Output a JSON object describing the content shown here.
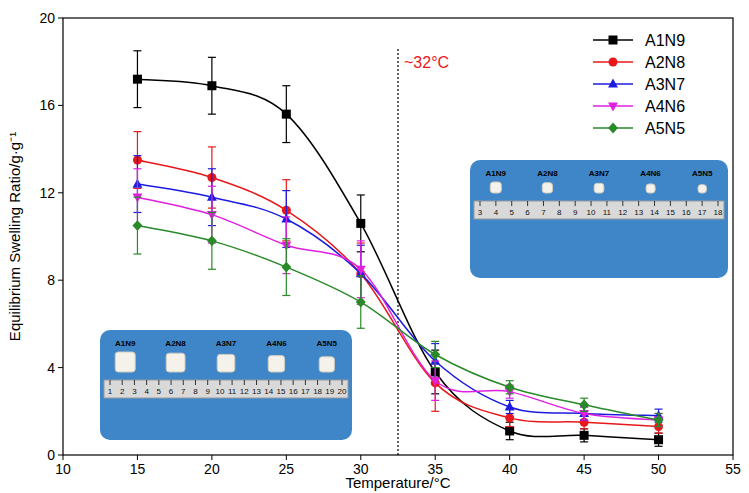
{
  "chart_data": {
    "type": "line",
    "x_label": "Temperature/°C",
    "y_label": "Equilibrium Swelling Ratio/g·g⁻¹",
    "x": [
      15,
      20,
      25,
      30,
      35,
      40,
      45,
      50
    ],
    "xlim": [
      10,
      55
    ],
    "xticks": [
      10,
      15,
      20,
      25,
      30,
      35,
      40,
      45,
      50,
      55
    ],
    "ylim": [
      0,
      20
    ],
    "yticks": [
      0,
      4,
      8,
      12,
      16,
      20
    ],
    "legend": "top-right",
    "grid": false,
    "series": [
      {
        "name": "A1N9",
        "color": "#000000",
        "marker": "square",
        "line_style": "solid",
        "values": [
          17.2,
          16.9,
          15.6,
          10.6,
          3.8,
          1.1,
          0.9,
          0.7
        ],
        "errors": [
          1.3,
          1.3,
          1.3,
          1.3,
          1.0,
          0.4,
          0.3,
          0.3
        ]
      },
      {
        "name": "A2N8",
        "color": "#e8181a",
        "marker": "circle",
        "line_style": "solid",
        "values": [
          13.5,
          12.7,
          11.2,
          8.3,
          3.3,
          1.7,
          1.5,
          1.3
        ],
        "errors": [
          1.3,
          1.4,
          1.4,
          1.4,
          1.3,
          0.4,
          0.3,
          0.3
        ]
      },
      {
        "name": "A3N7",
        "color": "#1c1ce0",
        "marker": "triangle",
        "line_style": "solid",
        "values": [
          12.4,
          11.8,
          10.8,
          8.3,
          4.3,
          2.2,
          1.9,
          1.8
        ],
        "errors": [
          1.3,
          1.3,
          1.3,
          1.3,
          0.8,
          0.3,
          0.3,
          0.3
        ]
      },
      {
        "name": "A4N6",
        "color": "#e020e0",
        "marker": "triangle-down",
        "line_style": "solid",
        "values": [
          11.8,
          11.0,
          9.6,
          8.5,
          3.4,
          2.9,
          1.9,
          1.6
        ],
        "errors": [
          1.3,
          1.3,
          1.3,
          1.3,
          0.9,
          0.3,
          0.3,
          0.3
        ]
      },
      {
        "name": "A5N5",
        "color": "#2a8a2a",
        "marker": "diamond",
        "line_style": "solid",
        "values": [
          10.5,
          9.8,
          8.6,
          7.0,
          4.6,
          3.1,
          2.3,
          1.6
        ],
        "errors": [
          1.3,
          1.3,
          1.3,
          1.2,
          0.6,
          0.3,
          0.3,
          0.3
        ]
      }
    ],
    "annotations": [
      {
        "text": "~32°C",
        "x": 32.5,
        "color": "#e8181a",
        "line_style": "dotted"
      }
    ],
    "insets": [
      {
        "labels": [
          "A1N9",
          "A2N8",
          "A3N7",
          "A4N6",
          "A5N5"
        ],
        "ruler": [
          3,
          4,
          5,
          6,
          7,
          8,
          9,
          10,
          11,
          12,
          13,
          14,
          15,
          16,
          17,
          18
        ]
      },
      {
        "labels": [
          "A1N9",
          "A2N8",
          "A3N7",
          "A4N6",
          "A5N5"
        ],
        "ruler": [
          1,
          2,
          3,
          4,
          5,
          6,
          7,
          8,
          9,
          10,
          11,
          12,
          13,
          14,
          15,
          16,
          17,
          18,
          19,
          20
        ]
      }
    ]
  }
}
